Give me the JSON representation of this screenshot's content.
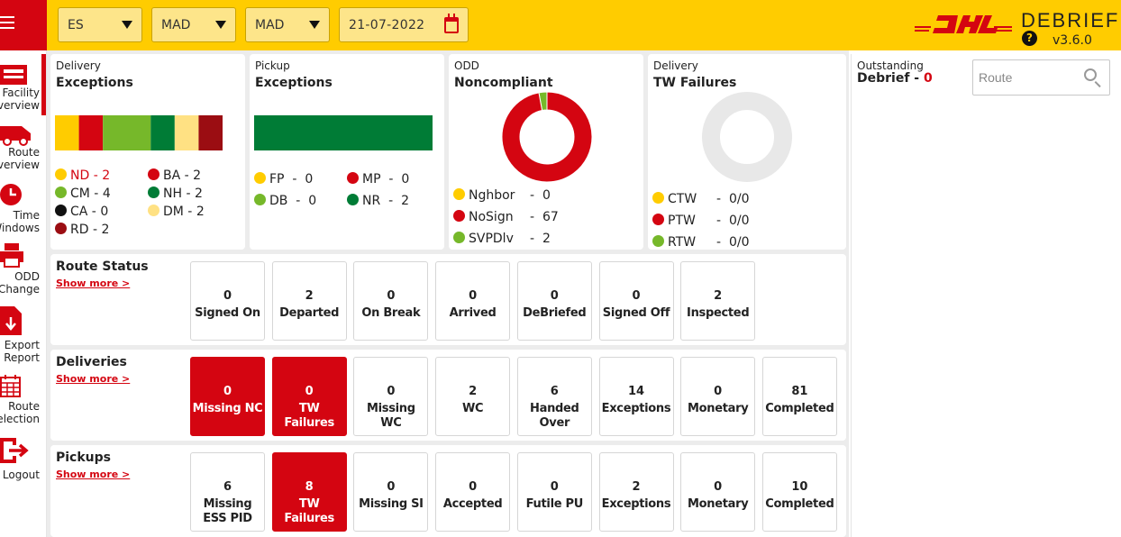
{
  "header": {
    "filters": [
      {
        "name": "country",
        "value": "ES"
      },
      {
        "name": "facility",
        "value": "MAD"
      },
      {
        "name": "station",
        "value": "MAD"
      }
    ],
    "date": "21-07-2022",
    "brand": "DEBRIEF",
    "version": "v3.6.0",
    "help_glyph": "?"
  },
  "colors": {
    "dhl_red": "#d40511",
    "dhl_yellow": "#ffcc00",
    "light_green": "#76b82a",
    "dark_green": "#007c36",
    "pale_yellow": "#ffe183",
    "dark_red": "#9b0d12",
    "grey": "#e8e8e8"
  },
  "sidebar": {
    "items": [
      {
        "label_1": "Facility",
        "label_2": "Overview",
        "icon": "facility-icon",
        "active": true
      },
      {
        "label_1": "Route",
        "label_2": "Overview",
        "icon": "truck-icon",
        "active": false
      },
      {
        "label_1": "Time",
        "label_2": "Windows",
        "icon": "clock-icon",
        "active": false
      },
      {
        "label_1": "ODD",
        "label_2": "Change",
        "icon": "printer-icon",
        "active": false
      },
      {
        "label_1": "Export",
        "label_2": "Report",
        "icon": "export-icon",
        "active": false
      },
      {
        "label_1": "Route",
        "label_2": "Selection",
        "icon": "calendar-grid-icon",
        "active": false
      },
      {
        "label_1": "Logout",
        "label_2": "",
        "icon": "logout-icon",
        "active": false
      }
    ]
  },
  "cards": {
    "delivery_exceptions": {
      "subtitle": "Delivery",
      "title": "Exceptions",
      "bar_segments": [
        {
          "code": "ND",
          "value": 2,
          "color": "#ffcc00"
        },
        {
          "code": "BA",
          "value": 2,
          "color": "#d40511"
        },
        {
          "code": "CM",
          "value": 4,
          "color": "#76b82a"
        },
        {
          "code": "NH",
          "value": 2,
          "color": "#007c36"
        },
        {
          "code": "DM",
          "value": 2,
          "color": "#ffe183"
        },
        {
          "code": "RD",
          "value": 2,
          "color": "#9b0d12"
        }
      ],
      "legend": [
        {
          "code": "ND",
          "value": "2",
          "color": "#ffcc00",
          "highlight": true
        },
        {
          "code": "BA",
          "value": "2",
          "color": "#d40511"
        },
        {
          "code": "CM",
          "value": "4",
          "color": "#76b82a"
        },
        {
          "code": "NH",
          "value": "2",
          "color": "#007c36"
        },
        {
          "code": "CA",
          "value": "0",
          "color": "#111111"
        },
        {
          "code": "DM",
          "value": "2",
          "color": "#ffe183"
        },
        {
          "code": "RD",
          "value": "2",
          "color": "#9b0d12"
        }
      ]
    },
    "pickup_exceptions": {
      "subtitle": "Pickup",
      "title": "Exceptions",
      "bar_color": "#007c36",
      "legend": [
        {
          "code": "FP",
          "value": "0",
          "color": "#ffcc00"
        },
        {
          "code": "MP",
          "value": "0",
          "color": "#d40511"
        },
        {
          "code": "DB",
          "value": "0",
          "color": "#76b82a"
        },
        {
          "code": "NR",
          "value": "2",
          "color": "#007c36"
        }
      ]
    },
    "odd_noncompliant": {
      "subtitle": "ODD",
      "title": "Noncompliant",
      "donut": [
        {
          "code": "Nghbor",
          "value": 0,
          "color": "#ffcc00"
        },
        {
          "code": "NoSign",
          "value": 67,
          "color": "#d40511"
        },
        {
          "code": "SVPDlv",
          "value": 2,
          "color": "#76b82a"
        }
      ],
      "legend": [
        {
          "code": "Nghbor",
          "value": "0",
          "color": "#ffcc00"
        },
        {
          "code": "NoSign",
          "value": "67",
          "color": "#d40511"
        },
        {
          "code": "SVPDlv",
          "value": "2",
          "color": "#76b82a"
        }
      ]
    },
    "tw_failures": {
      "subtitle": "Delivery",
      "title": "TW Failures",
      "legend": [
        {
          "code": "CTW",
          "value": "0/0",
          "color": "#ffcc00"
        },
        {
          "code": "PTW",
          "value": "0/0",
          "color": "#d40511"
        },
        {
          "code": "RTW",
          "value": "0/0",
          "color": "#76b82a"
        }
      ]
    }
  },
  "route_status": {
    "title": "Route Status",
    "show_more": "Show more >",
    "tiles": [
      {
        "value": "0",
        "label": "Signed On",
        "red": false
      },
      {
        "value": "2",
        "label": "Departed",
        "red": false
      },
      {
        "value": "0",
        "label": "On Break",
        "red": false
      },
      {
        "value": "0",
        "label": "Arrived",
        "red": false
      },
      {
        "value": "0",
        "label": "DeBriefed",
        "red": false
      },
      {
        "value": "0",
        "label": "Signed Off",
        "red": false
      },
      {
        "value": "2",
        "label": "Inspected",
        "red": false
      }
    ]
  },
  "deliveries": {
    "title": "Deliveries",
    "show_more": "Show more >",
    "tiles": [
      {
        "value": "0",
        "label": "Missing NC",
        "red": true
      },
      {
        "value": "0",
        "label": "TW Failures",
        "red": true
      },
      {
        "value": "0",
        "label": "Missing WC",
        "red": false
      },
      {
        "value": "2",
        "label": "WC",
        "red": false
      },
      {
        "value": "6",
        "label": "Handed Over",
        "red": false
      },
      {
        "value": "14",
        "label": "Exceptions",
        "red": false
      },
      {
        "value": "0",
        "label": "Monetary",
        "red": false
      },
      {
        "value": "81",
        "label": "Completed",
        "red": false
      }
    ]
  },
  "pickups": {
    "title": "Pickups",
    "show_more": "Show more >",
    "tiles": [
      {
        "value": "6",
        "label": "Missing ESS PID",
        "red": false
      },
      {
        "value": "8",
        "label": "TW Failures",
        "red": true
      },
      {
        "value": "0",
        "label": "Missing SI",
        "red": false
      },
      {
        "value": "0",
        "label": "Accepted",
        "red": false
      },
      {
        "value": "0",
        "label": "Futile PU",
        "red": false
      },
      {
        "value": "2",
        "label": "Exceptions",
        "red": false
      },
      {
        "value": "0",
        "label": "Monetary",
        "red": false
      },
      {
        "value": "10",
        "label": "Completed",
        "red": false
      }
    ]
  },
  "outstanding": {
    "subtitle": "Outstanding",
    "title": "Debrief - ",
    "count": "0",
    "search_placeholder": "Route"
  }
}
